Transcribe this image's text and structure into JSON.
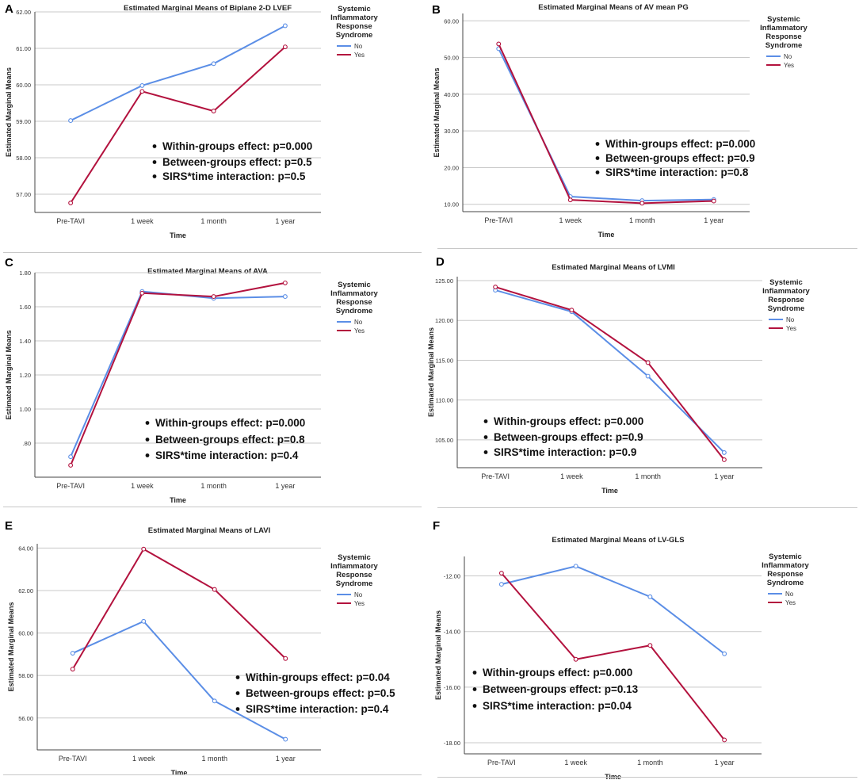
{
  "chart_data": [
    {
      "letter": "A",
      "type": "line",
      "title": "Estimated Marginal Means of Biplane 2-D LVEF",
      "xlabel": "Time",
      "ylabel": "Estimated Marginal Means",
      "categories": [
        "Pre-TAVI",
        "1 week",
        "1 month",
        "1 year"
      ],
      "ylim": [
        56.5,
        62.0
      ],
      "yticks": [
        57,
        58,
        59,
        60,
        61,
        62
      ],
      "ytick_labels": [
        "57.00",
        "58.00",
        "59.00",
        "60.00",
        "61.00",
        "62.00"
      ],
      "legend_title": "Systemic Inflammatory Response Syndrome",
      "series": [
        {
          "name": "No",
          "color": "#5b8ee6",
          "values": [
            59.02,
            59.98,
            60.58,
            61.62
          ]
        },
        {
          "name": "Yes",
          "color": "#b3123e",
          "values": [
            56.76,
            59.82,
            59.28,
            61.04
          ]
        }
      ],
      "annotations": [
        "Within-groups effect: p=0.000",
        "Between-groups effect: p=0.5",
        "SIRS*time interaction: p=0.5"
      ]
    },
    {
      "letter": "B",
      "type": "line",
      "title": "Estimated Marginal Means of AV mean PG",
      "xlabel": "Time",
      "ylabel": "Estimated Marginal Means",
      "categories": [
        "Pre-TAVI",
        "1 week",
        "1 month",
        "1 year"
      ],
      "ylim": [
        8.0,
        62.0
      ],
      "yticks": [
        10,
        20,
        30,
        40,
        50,
        60
      ],
      "ytick_labels": [
        "10.00",
        "20.00",
        "30.00",
        "40.00",
        "50.00",
        "60.00"
      ],
      "legend_title": "Systemic Inflammatory Response Syndrome",
      "series": [
        {
          "name": "No",
          "color": "#5b8ee6",
          "values": [
            52.4,
            12.1,
            11.0,
            11.3
          ]
        },
        {
          "name": "Yes",
          "color": "#b3123e",
          "values": [
            53.7,
            11.2,
            10.3,
            10.9
          ]
        }
      ],
      "annotations": [
        "Within-groups effect: p=0.000",
        "Between-groups effect: p=0.9",
        "SIRS*time interaction: p=0.8"
      ]
    },
    {
      "letter": "C",
      "type": "line",
      "title": "Estimated Marginal Means of AVA",
      "xlabel": "Time",
      "ylabel": "Estimated Marginal Means",
      "categories": [
        "Pre-TAVI",
        "1 week",
        "1 month",
        "1 year"
      ],
      "ylim": [
        0.6,
        1.8
      ],
      "yticks": [
        0.8,
        1.0,
        1.2,
        1.4,
        1.6,
        1.8
      ],
      "ytick_labels": [
        ".80",
        "1.00",
        "1.20",
        "1.40",
        "1.60",
        "1.80"
      ],
      "legend_title": "Systemic Inflammatory Response Syndrome",
      "series": [
        {
          "name": "No",
          "color": "#5b8ee6",
          "values": [
            0.72,
            1.69,
            1.65,
            1.66
          ]
        },
        {
          "name": "Yes",
          "color": "#b3123e",
          "values": [
            0.67,
            1.68,
            1.66,
            1.74
          ]
        }
      ],
      "annotations": [
        "Within-groups effect: p=0.000",
        "Between-groups effect: p=0.8",
        "SIRS*time interaction: p=0.4"
      ]
    },
    {
      "letter": "D",
      "type": "line",
      "title": "Estimated Marginal Means of LVMI",
      "xlabel": "Time",
      "ylabel": "Estimated Marginal Means",
      "categories": [
        "Pre-TAVI",
        "1 week",
        "1 month",
        "1 year"
      ],
      "ylim": [
        101.5,
        125.5
      ],
      "yticks": [
        105,
        110,
        115,
        120,
        125
      ],
      "ytick_labels": [
        "105.00",
        "110.00",
        "115.00",
        "120.00",
        "125.00"
      ],
      "legend_title": "Systemic Inflammatory Response Syndrome",
      "series": [
        {
          "name": "No",
          "color": "#5b8ee6",
          "values": [
            123.8,
            121.1,
            113.0,
            103.4
          ]
        },
        {
          "name": "Yes",
          "color": "#b3123e",
          "values": [
            124.2,
            121.3,
            114.7,
            102.5
          ]
        }
      ],
      "annotations": [
        "Within-groups effect: p=0.000",
        "Between-groups effect: p=0.9",
        "SIRS*time interaction: p=0.9"
      ]
    },
    {
      "letter": "E",
      "type": "line",
      "title": "Estimated Marginal Means of LAVI",
      "xlabel": "Time",
      "ylabel": "Estimated Marginal Means",
      "categories": [
        "Pre-TAVI",
        "1 week",
        "1 month",
        "1 year"
      ],
      "ylim": [
        54.5,
        64.2
      ],
      "yticks": [
        56,
        58,
        60,
        62,
        64
      ],
      "ytick_labels": [
        "56.00",
        "58.00",
        "60.00",
        "62.00",
        "64.00"
      ],
      "legend_title": "Systemic Inflammatory Response Syndrome",
      "series": [
        {
          "name": "No",
          "color": "#5b8ee6",
          "values": [
            59.05,
            60.55,
            56.8,
            55.0
          ]
        },
        {
          "name": "Yes",
          "color": "#b3123e",
          "values": [
            58.3,
            63.95,
            62.05,
            58.8
          ]
        }
      ],
      "annotations": [
        "Within-groups effect: p=0.04",
        "Between-groups effect: p=0.5",
        "SIRS*time interaction: p=0.4"
      ]
    },
    {
      "letter": "F",
      "type": "line",
      "title": "Estimated Marginal Means of LV-GLS",
      "xlabel": "Time",
      "ylabel": "Estimated Marginal Means",
      "categories": [
        "Pre-TAVI",
        "1 week",
        "1 month",
        "1 year"
      ],
      "ylim": [
        -18.4,
        -11.3
      ],
      "yticks": [
        -18,
        -16,
        -14,
        -12
      ],
      "ytick_labels": [
        "-18.00",
        "-16.00",
        "-14.00",
        "-12.00"
      ],
      "legend_title": "Systemic Inflammatory Response Syndrome",
      "series": [
        {
          "name": "No",
          "color": "#5b8ee6",
          "values": [
            -12.3,
            -11.65,
            -12.75,
            -14.8
          ]
        },
        {
          "name": "Yes",
          "color": "#b3123e",
          "values": [
            -11.9,
            -15.0,
            -14.5,
            -17.9
          ]
        }
      ],
      "annotations": [
        "Within-groups effect: p=0.000",
        "Between-groups effect: p=0.13",
        "SIRS*time interaction: p=0.04"
      ]
    }
  ]
}
